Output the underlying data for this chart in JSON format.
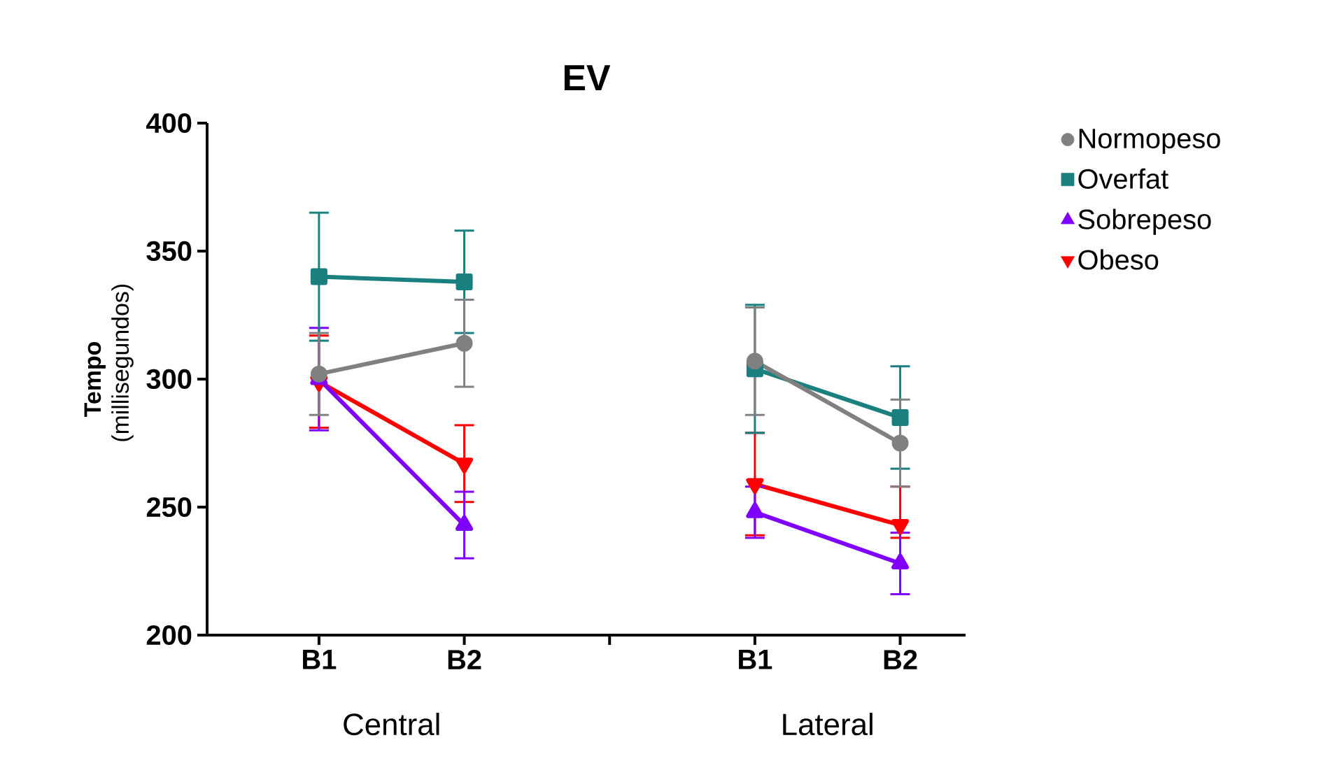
{
  "chart_data": {
    "type": "line",
    "title": "EV",
    "ylabel": "**Tempo** (millisegundos)",
    "categories": [
      "B1",
      "B2",
      null,
      "B1",
      "B2"
    ],
    "annotations": [
      "Central",
      "Lateral"
    ],
    "ylim": [
      200,
      400
    ],
    "yticks": [
      200,
      250,
      300,
      350,
      400
    ],
    "legend": "right",
    "series": [
      {
        "name": "Normopeso",
        "color": "#808080",
        "marker": "circle",
        "values": [
          302,
          314,
          null,
          307,
          275
        ],
        "errors": [
          16,
          17,
          null,
          21,
          17
        ]
      },
      {
        "name": "Overfat",
        "color": "#1a7f7f",
        "marker": "square",
        "values": [
          340,
          338,
          null,
          304,
          285
        ],
        "errors": [
          25,
          20,
          null,
          25,
          20
        ]
      },
      {
        "name": "Sobrepeso",
        "color": "#8000ff",
        "marker": "triangle",
        "values": [
          300,
          243,
          null,
          248,
          228
        ],
        "errors": [
          20,
          13,
          null,
          10,
          12
        ]
      },
      {
        "name": "Obeso",
        "color": "#ff0000",
        "marker": "triangle down",
        "values": [
          299,
          267,
          null,
          259,
          243
        ],
        "errors": [
          18,
          15,
          null,
          20,
          [
            238,
            258
          ]
        ]
      }
    ]
  }
}
